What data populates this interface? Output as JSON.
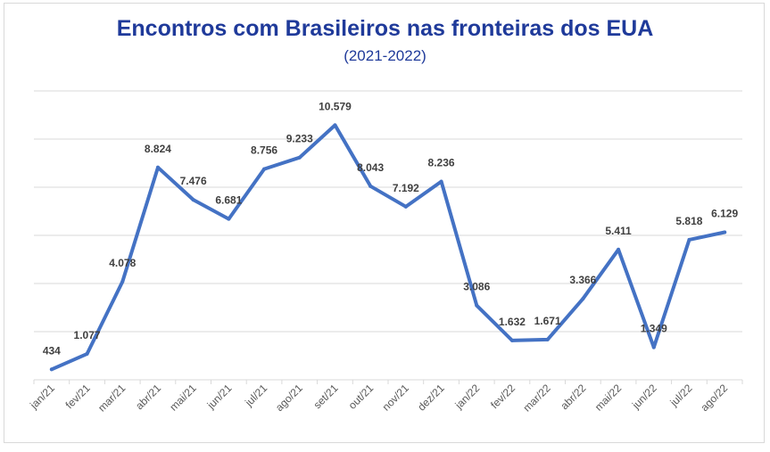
{
  "chart_data": {
    "type": "line",
    "title": "Encontros com Brasileiros nas fronteiras dos EUA",
    "subtitle": "(2021-2022)",
    "xlabel": "",
    "ylabel": "",
    "categories": [
      "jan/21",
      "fev/21",
      "mar/21",
      "abr/21",
      "mai/21",
      "jun/21",
      "jul/21",
      "ago/21",
      "set/21",
      "out/21",
      "nov/21",
      "dez/21",
      "jan/22",
      "fev/22",
      "mar/22",
      "abr/22",
      "mai/22",
      "jun/22",
      "jul/22",
      "ago/22"
    ],
    "series": [
      {
        "name": "Encontros",
        "values": [
          434,
          1077,
          4078,
          8824,
          7476,
          6681,
          8756,
          9233,
          10579,
          8043,
          7192,
          8236,
          3086,
          1632,
          1671,
          3366,
          5411,
          1349,
          5818,
          6129
        ],
        "labels": [
          "434",
          "1.077",
          "4.078",
          "8.824",
          "7.476",
          "6.681",
          "8.756",
          "9.233",
          "10.579",
          "8.043",
          "7.192",
          "8.236",
          "3.086",
          "1.632",
          "1.671",
          "3.366",
          "5.411",
          "1.349",
          "5.818",
          "6.129"
        ],
        "color": "#4472c4"
      }
    ],
    "ylim": [
      0,
      12000
    ],
    "grid": true
  }
}
